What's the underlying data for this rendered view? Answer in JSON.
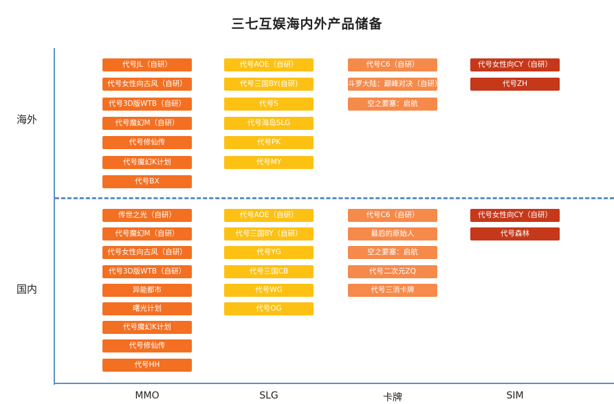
{
  "title": "三七互娱海内外产品储备",
  "rows": {
    "overseas": "海外",
    "domestic": "国内"
  },
  "columns": {
    "mmo": "MMO",
    "slg": "SLG",
    "card": "卡牌",
    "sim": "SIM"
  },
  "colors": {
    "mmo": "#f36f21",
    "slg": "#fcc113",
    "card": "#f58a4b",
    "sim": "#c5381a",
    "axis": "#5b8fc7"
  },
  "overseas": {
    "mmo": [
      "代号JL（自研）",
      "代号女性向古风（自研）",
      "代号3D版WTB（自研）",
      "代号魔幻M（自研）",
      "代号修仙传",
      "代号魔幻K计划",
      "代号BX"
    ],
    "slg": [
      "代号AOE（自研）",
      "代号三国BY(自研)",
      "代号S",
      "代号海岛SLG",
      "代号PK",
      "代号MY"
    ],
    "card": [
      "代号C6（自研）",
      "斗罗大陆：巅峰对决（自研）",
      "空之要塞：启航"
    ],
    "sim": [
      "代号女性向CY（自研）",
      "代号ZH"
    ]
  },
  "domestic": {
    "mmo": [
      "传世之光（自研）",
      "代号魔幻M（自研）",
      "代号女性向古风（自研）",
      "代号3D版WTB（自研）",
      "异能都市",
      "曙光计划",
      "代号魔幻K计划",
      "代号修仙传",
      "代号HH"
    ],
    "slg": [
      "代号AOE（自研）",
      "代号三国BY（自研）",
      "代号YG",
      "代号三国CB",
      "代号WG",
      "代号OG"
    ],
    "card": [
      "代号C6（自研）",
      "最后的原始人",
      "空之要塞：启航",
      "代号二次元ZQ",
      "代号三消卡牌"
    ],
    "sim": [
      "代号女性向CY（自研）",
      "代号森林"
    ]
  }
}
